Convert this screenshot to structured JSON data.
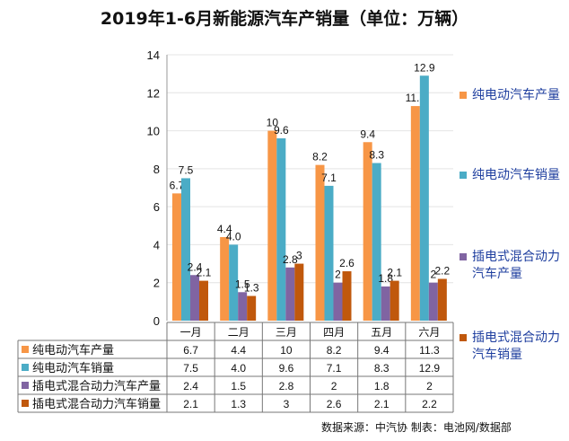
{
  "chart_data": {
    "type": "bar",
    "title": "2019年1-6月新能源汽车产销量（单位：万辆）",
    "categories": [
      "一月",
      "二月",
      "三月",
      "四月",
      "五月",
      "六月"
    ],
    "series": [
      {
        "name": "纯电动汽车产量",
        "color": "#F79646",
        "values": [
          6.7,
          4.4,
          10,
          8.2,
          9.4,
          11.3
        ],
        "labels": [
          "6.7",
          "4.4",
          "10",
          "8.2",
          "9.4",
          "11.3"
        ]
      },
      {
        "name": "纯电动汽车销量",
        "color": "#4BACC6",
        "values": [
          7.5,
          4.0,
          9.6,
          7.1,
          8.3,
          12.9
        ],
        "labels": [
          "7.5",
          "4.0",
          "9.6",
          "7.1",
          "8.3",
          "12.9"
        ]
      },
      {
        "name": "插电式混合动力汽车产量",
        "color": "#8064A2",
        "values": [
          2.4,
          1.5,
          2.8,
          2,
          1.8,
          2
        ],
        "labels": [
          "2.4",
          "1.5",
          "2.8",
          "2",
          "1.8",
          "2"
        ]
      },
      {
        "name": "插电式混合动力汽车销量",
        "color": "#C0580C",
        "values": [
          2.1,
          1.3,
          3,
          2.6,
          2.1,
          2.2
        ],
        "labels": [
          "2.1",
          "1.3",
          "3",
          "2.6",
          "2.1",
          "2.2"
        ]
      }
    ],
    "ylim": [
      0,
      14
    ],
    "yticks": [
      "0",
      "2",
      "4",
      "6",
      "8",
      "10",
      "12",
      "14"
    ],
    "legend": "right",
    "grid": true,
    "xlabel": "",
    "ylabel": ""
  },
  "source": "数据来源：中汽协  制表：电池网/数据部"
}
